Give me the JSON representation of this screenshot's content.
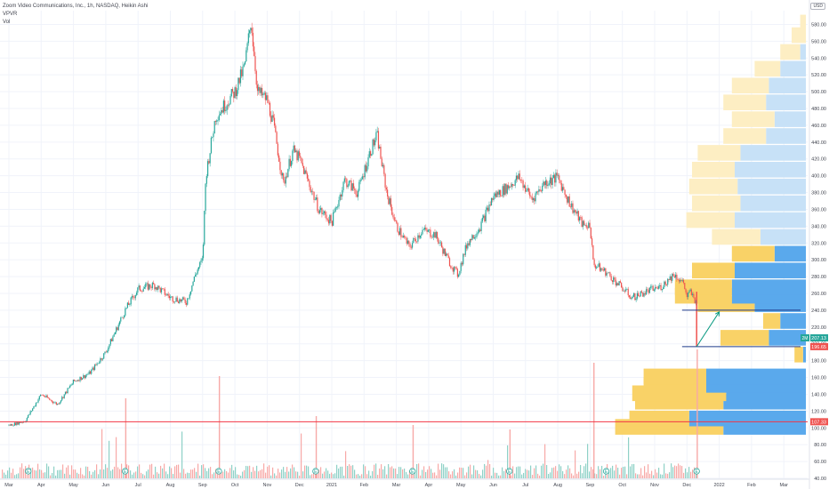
{
  "legend": {
    "title": "Zoom Video Communications, Inc., 1h, NASDAQ, Heikin Ashi",
    "indicator_vpvr": "VPVR",
    "indicator_vol": "Vol"
  },
  "currency_button": "USD",
  "colors": {
    "up": "#26a69a",
    "down": "#ef5350",
    "vp_up_value_area": "#5aa9ec",
    "vp_down_value_area": "#f9d267",
    "vp_up_outside": "#c7e1f7",
    "vp_down_outside": "#fdeec3",
    "support_line": "#f23645",
    "trend_line": "#1e3a8a",
    "arrow": "#089981",
    "price_label_green": "#26a69a",
    "price_label_red": "#ef5350"
  },
  "chart_data": {
    "type": "candlestick",
    "chart_style": "Heikin Ashi",
    "symbol": "Zoom Video Communications, Inc.",
    "timeframe": "1h",
    "exchange": "NASDAQ",
    "y_axis": {
      "range": [
        40,
        590
      ],
      "tick_labels": [
        "40.00",
        "60.00",
        "80.00",
        "100.00",
        "120.00",
        "140.00",
        "160.00",
        "180.00",
        "200.00",
        "220.00",
        "240.00",
        "260.00",
        "280.00",
        "300.00",
        "320.00",
        "340.00",
        "360.00",
        "380.00",
        "400.00",
        "420.00",
        "440.00",
        "460.00",
        "480.00",
        "500.00",
        "520.00",
        "540.00",
        "560.00",
        "580.00"
      ],
      "tick_values": [
        40,
        60,
        80,
        100,
        120,
        140,
        160,
        180,
        200,
        220,
        240,
        260,
        280,
        300,
        320,
        340,
        360,
        380,
        400,
        420,
        440,
        460,
        480,
        500,
        520,
        540,
        560,
        580
      ]
    },
    "x_axis": {
      "tick_labels": [
        "Mar",
        "Apr",
        "May",
        "Jun",
        "Jul",
        "Aug",
        "Sep",
        "Oct",
        "Nov",
        "Dec",
        "2021",
        "Feb",
        "Mar",
        "Apr",
        "May",
        "Jun",
        "Jul",
        "Aug",
        "Sep",
        "Oct",
        "Nov",
        "Dec",
        "2022",
        "Feb",
        "Mar"
      ],
      "tick_index": [
        0,
        1,
        2,
        3,
        4,
        5,
        6,
        7,
        8,
        9,
        10,
        11,
        12,
        13,
        14,
        15,
        16,
        17,
        18,
        19,
        20,
        21,
        22,
        23,
        24
      ],
      "data_range_index": [
        0,
        21.3
      ]
    },
    "price_path": [
      [
        0,
        103
      ],
      [
        0.5,
        108
      ],
      [
        1,
        140
      ],
      [
        1.5,
        128
      ],
      [
        2,
        155
      ],
      [
        2.5,
        165
      ],
      [
        3,
        190
      ],
      [
        3.6,
        240
      ],
      [
        4,
        265
      ],
      [
        4.5,
        270
      ],
      [
        5,
        255
      ],
      [
        5.5,
        250
      ],
      [
        5.8,
        285
      ],
      [
        6,
        300
      ],
      [
        6.1,
        400
      ],
      [
        6.4,
        470
      ],
      [
        6.8,
        490
      ],
      [
        7,
        500
      ],
      [
        7.3,
        530
      ],
      [
        7.5,
        585
      ],
      [
        7.7,
        500
      ],
      [
        8,
        490
      ],
      [
        8.2,
        460
      ],
      [
        8.5,
        390
      ],
      [
        8.8,
        430
      ],
      [
        9,
        420
      ],
      [
        9.3,
        390
      ],
      [
        9.6,
        360
      ],
      [
        10,
        345
      ],
      [
        10.4,
        395
      ],
      [
        10.8,
        380
      ],
      [
        11.2,
        430
      ],
      [
        11.4,
        448
      ],
      [
        11.7,
        380
      ],
      [
        12,
        340
      ],
      [
        12.4,
        315
      ],
      [
        12.8,
        335
      ],
      [
        13.2,
        330
      ],
      [
        13.6,
        300
      ],
      [
        13.9,
        282
      ],
      [
        14.2,
        320
      ],
      [
        14.6,
        340
      ],
      [
        15,
        375
      ],
      [
        15.4,
        385
      ],
      [
        15.8,
        398
      ],
      [
        16.2,
        372
      ],
      [
        16.6,
        392
      ],
      [
        17,
        398
      ],
      [
        17.4,
        365
      ],
      [
        17.8,
        340
      ],
      [
        18,
        342
      ],
      [
        18.1,
        295
      ],
      [
        18.5,
        285
      ],
      [
        18.9,
        270
      ],
      [
        19.3,
        255
      ],
      [
        19.8,
        263
      ],
      [
        20.2,
        268
      ],
      [
        20.6,
        283
      ],
      [
        20.9,
        272
      ],
      [
        21.0,
        255
      ],
      [
        21.1,
        262
      ],
      [
        21.3,
        248
      ]
    ],
    "last_price_labels": [
      {
        "label": "207.13",
        "value": 207.13,
        "tag": "2M",
        "color": "green"
      },
      {
        "label": "196.65",
        "value": 196.65,
        "color": "red"
      },
      {
        "label": "107.33",
        "value": 107.33,
        "color": "red"
      }
    ],
    "horizontal_lines": [
      {
        "value": 107.33,
        "color": "red"
      },
      {
        "value": 196.65,
        "color": "navy",
        "from_index": 20.85
      },
      {
        "value": 240,
        "color": "navy",
        "from_index": 20.85
      }
    ],
    "arrow": {
      "from": [
        21.3,
        196.65
      ],
      "to": [
        22.0,
        238
      ]
    },
    "event_markers_index": [
      0.6,
      3.6,
      6.5,
      9.5,
      12.5,
      15.5,
      18.5,
      21.3
    ],
    "event_marker_label": "E",
    "volume_profile": {
      "bins": [
        {
          "price": 101,
          "up": 38,
          "down": 29
        },
        {
          "price": 111,
          "up": 21,
          "down": 41
        },
        {
          "price": 131,
          "up": 31,
          "down": 29
        },
        {
          "price": 141,
          "up": 33,
          "down": 28
        },
        {
          "price": 151,
          "up": 22,
          "down": 35
        },
        {
          "price": 161,
          "up": 22,
          "down": 35
        },
        {
          "price": 187,
          "up": 3,
          "down": 1
        },
        {
          "price": 207,
          "up": 17,
          "down": 13
        },
        {
          "price": 227,
          "up": 6,
          "down": 9
        },
        {
          "price": 247,
          "up": 20,
          "down": 18
        },
        {
          "price": 257,
          "up": 20,
          "down": 26
        },
        {
          "price": 267,
          "up": 20,
          "down": 26
        },
        {
          "price": 287,
          "up": 15,
          "down": 25
        },
        {
          "price": 307,
          "up": 15,
          "down": 11
        },
        {
          "price": 327,
          "up": 17,
          "down": 16
        },
        {
          "price": 347,
          "up": 17,
          "down": 25
        },
        {
          "price": 367,
          "up": 17,
          "down": 23
        },
        {
          "price": 387,
          "up": 17,
          "down": 24
        },
        {
          "price": 407,
          "up": 15,
          "down": 25
        },
        {
          "price": 427,
          "up": 15,
          "down": 23
        },
        {
          "price": 447,
          "up": 15,
          "down": 14
        },
        {
          "price": 467,
          "up": 15,
          "down": 11
        },
        {
          "price": 487,
          "up": 15,
          "down": 14
        },
        {
          "price": 507,
          "up": 13,
          "down": 13
        },
        {
          "price": 527,
          "up": 9,
          "down": 9
        },
        {
          "price": 547,
          "up": 7,
          "down": 2
        },
        {
          "price": 567,
          "up": 5,
          "down": 0
        },
        {
          "price": 582,
          "up": 2,
          "down": 0
        }
      ],
      "value_area": [
        100,
        320
      ]
    }
  }
}
